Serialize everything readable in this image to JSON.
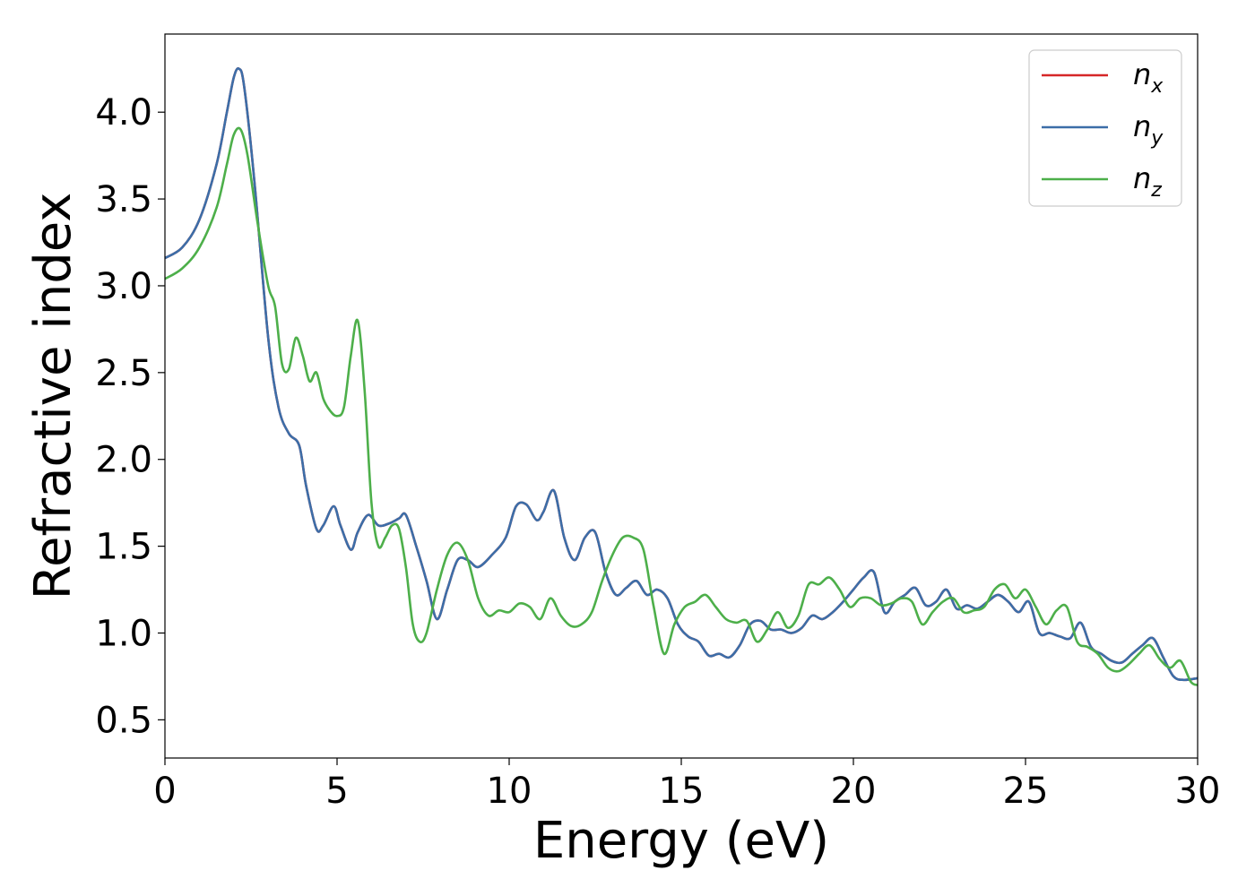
{
  "chart_data": {
    "type": "line",
    "title": "",
    "xlabel": "Energy (eV)",
    "ylabel": "Refractive index",
    "xlim": [
      0,
      30
    ],
    "ylim": [
      0.28,
      4.45
    ],
    "grid": false,
    "legend_position": "top-right",
    "x_ticks": [
      "0",
      "5",
      "10",
      "15",
      "20",
      "25",
      "30"
    ],
    "y_ticks": [
      "0.5",
      "1.0",
      "1.5",
      "2.0",
      "2.5",
      "3.0",
      "3.5",
      "4.0"
    ],
    "series": [
      {
        "name": "n_x",
        "legend_base": "n",
        "legend_sub": "x",
        "color": "#d62728",
        "x": [
          0,
          0.5,
          1.0,
          1.5,
          1.8,
          2.0,
          2.15,
          2.3,
          2.6,
          3.0,
          3.3,
          3.6,
          3.9,
          4.1,
          4.4,
          4.6,
          4.9,
          5.1,
          5.4,
          5.6,
          5.9,
          6.2,
          6.5,
          6.8,
          7.0,
          7.3,
          7.6,
          7.9,
          8.2,
          8.5,
          8.8,
          9.1,
          9.5,
          9.9,
          10.2,
          10.5,
          10.8,
          11.0,
          11.3,
          11.6,
          11.9,
          12.2,
          12.5,
          12.8,
          13.1,
          13.4,
          13.7,
          14.0,
          14.3,
          14.6,
          14.9,
          15.2,
          15.5,
          15.8,
          16.1,
          16.4,
          16.7,
          17.0,
          17.3,
          17.6,
          17.9,
          18.2,
          18.5,
          18.8,
          19.1,
          19.4,
          19.7,
          20.0,
          20.3,
          20.6,
          20.9,
          21.2,
          21.5,
          21.8,
          22.1,
          22.4,
          22.7,
          23.0,
          23.3,
          23.6,
          23.9,
          24.2,
          24.5,
          24.8,
          25.1,
          25.4,
          25.7,
          26.0,
          26.3,
          26.6,
          26.9,
          27.2,
          27.5,
          27.8,
          28.1,
          28.4,
          28.7,
          29.0,
          29.3,
          29.6,
          30.0
        ],
        "y": [
          3.16,
          3.22,
          3.38,
          3.7,
          4.0,
          4.2,
          4.25,
          4.15,
          3.6,
          2.7,
          2.3,
          2.15,
          2.08,
          1.85,
          1.6,
          1.62,
          1.73,
          1.62,
          1.48,
          1.58,
          1.68,
          1.62,
          1.63,
          1.66,
          1.68,
          1.5,
          1.3,
          1.08,
          1.25,
          1.42,
          1.42,
          1.38,
          1.45,
          1.55,
          1.73,
          1.74,
          1.65,
          1.7,
          1.82,
          1.55,
          1.42,
          1.55,
          1.58,
          1.35,
          1.22,
          1.26,
          1.3,
          1.22,
          1.25,
          1.2,
          1.05,
          0.98,
          0.95,
          0.87,
          0.88,
          0.86,
          0.93,
          1.05,
          1.07,
          1.02,
          1.02,
          1.0,
          1.03,
          1.1,
          1.08,
          1.12,
          1.18,
          1.25,
          1.32,
          1.35,
          1.12,
          1.18,
          1.22,
          1.26,
          1.16,
          1.18,
          1.25,
          1.14,
          1.16,
          1.14,
          1.18,
          1.22,
          1.18,
          1.12,
          1.18,
          1.0,
          1.0,
          0.98,
          0.97,
          1.06,
          0.92,
          0.88,
          0.84,
          0.83,
          0.88,
          0.93,
          0.97,
          0.86,
          0.75,
          0.73,
          0.74
        ]
      },
      {
        "name": "n_y",
        "legend_base": "n",
        "legend_sub": "y",
        "color": "#3c6ea8",
        "x": [
          0,
          0.5,
          1.0,
          1.5,
          1.8,
          2.0,
          2.15,
          2.3,
          2.6,
          3.0,
          3.3,
          3.6,
          3.9,
          4.1,
          4.4,
          4.6,
          4.9,
          5.1,
          5.4,
          5.6,
          5.9,
          6.2,
          6.5,
          6.8,
          7.0,
          7.3,
          7.6,
          7.9,
          8.2,
          8.5,
          8.8,
          9.1,
          9.5,
          9.9,
          10.2,
          10.5,
          10.8,
          11.0,
          11.3,
          11.6,
          11.9,
          12.2,
          12.5,
          12.8,
          13.1,
          13.4,
          13.7,
          14.0,
          14.3,
          14.6,
          14.9,
          15.2,
          15.5,
          15.8,
          16.1,
          16.4,
          16.7,
          17.0,
          17.3,
          17.6,
          17.9,
          18.2,
          18.5,
          18.8,
          19.1,
          19.4,
          19.7,
          20.0,
          20.3,
          20.6,
          20.9,
          21.2,
          21.5,
          21.8,
          22.1,
          22.4,
          22.7,
          23.0,
          23.3,
          23.6,
          23.9,
          24.2,
          24.5,
          24.8,
          25.1,
          25.4,
          25.7,
          26.0,
          26.3,
          26.6,
          26.9,
          27.2,
          27.5,
          27.8,
          28.1,
          28.4,
          28.7,
          29.0,
          29.3,
          29.6,
          30.0
        ],
        "y": [
          3.16,
          3.22,
          3.38,
          3.7,
          4.0,
          4.2,
          4.25,
          4.15,
          3.6,
          2.7,
          2.3,
          2.15,
          2.08,
          1.85,
          1.6,
          1.62,
          1.73,
          1.62,
          1.48,
          1.58,
          1.68,
          1.62,
          1.63,
          1.66,
          1.68,
          1.5,
          1.3,
          1.08,
          1.25,
          1.42,
          1.42,
          1.38,
          1.45,
          1.55,
          1.73,
          1.74,
          1.65,
          1.7,
          1.82,
          1.55,
          1.42,
          1.55,
          1.58,
          1.35,
          1.22,
          1.26,
          1.3,
          1.22,
          1.25,
          1.2,
          1.05,
          0.98,
          0.95,
          0.87,
          0.88,
          0.86,
          0.93,
          1.05,
          1.07,
          1.02,
          1.02,
          1.0,
          1.03,
          1.1,
          1.08,
          1.12,
          1.18,
          1.25,
          1.32,
          1.35,
          1.12,
          1.18,
          1.22,
          1.26,
          1.16,
          1.18,
          1.25,
          1.14,
          1.16,
          1.14,
          1.18,
          1.22,
          1.18,
          1.12,
          1.18,
          1.0,
          1.0,
          0.98,
          0.97,
          1.06,
          0.92,
          0.88,
          0.84,
          0.83,
          0.88,
          0.93,
          0.97,
          0.86,
          0.75,
          0.73,
          0.74
        ]
      },
      {
        "name": "n_z",
        "legend_base": "n",
        "legend_sub": "z",
        "color": "#4daf4a",
        "x": [
          0,
          0.5,
          1.0,
          1.5,
          1.8,
          2.0,
          2.2,
          2.4,
          2.7,
          3.0,
          3.2,
          3.4,
          3.6,
          3.8,
          4.0,
          4.2,
          4.4,
          4.6,
          4.8,
          5.0,
          5.2,
          5.4,
          5.6,
          5.8,
          6.0,
          6.2,
          6.4,
          6.6,
          6.8,
          7.0,
          7.2,
          7.4,
          7.6,
          7.9,
          8.2,
          8.5,
          8.8,
          9.1,
          9.4,
          9.7,
          10.0,
          10.3,
          10.6,
          10.9,
          11.2,
          11.5,
          11.8,
          12.1,
          12.4,
          12.7,
          13.0,
          13.3,
          13.6,
          13.9,
          14.2,
          14.5,
          14.8,
          15.1,
          15.4,
          15.7,
          16.0,
          16.3,
          16.6,
          16.9,
          17.2,
          17.5,
          17.8,
          18.1,
          18.4,
          18.7,
          19.0,
          19.3,
          19.6,
          19.9,
          20.2,
          20.5,
          20.8,
          21.1,
          21.4,
          21.7,
          22.0,
          22.3,
          22.6,
          22.9,
          23.2,
          23.5,
          23.8,
          24.1,
          24.4,
          24.7,
          25.0,
          25.3,
          25.6,
          25.9,
          26.2,
          26.5,
          26.8,
          27.1,
          27.4,
          27.7,
          28.0,
          28.3,
          28.6,
          28.9,
          29.2,
          29.5,
          29.8,
          30.0
        ],
        "y": [
          3.04,
          3.1,
          3.22,
          3.45,
          3.7,
          3.87,
          3.9,
          3.75,
          3.35,
          3.0,
          2.88,
          2.55,
          2.52,
          2.7,
          2.6,
          2.45,
          2.5,
          2.35,
          2.28,
          2.25,
          2.3,
          2.6,
          2.8,
          2.4,
          1.75,
          1.5,
          1.55,
          1.62,
          1.6,
          1.38,
          1.05,
          0.95,
          1.0,
          1.25,
          1.45,
          1.52,
          1.42,
          1.2,
          1.1,
          1.13,
          1.12,
          1.17,
          1.15,
          1.08,
          1.2,
          1.1,
          1.04,
          1.05,
          1.12,
          1.3,
          1.45,
          1.55,
          1.55,
          1.48,
          1.15,
          0.88,
          1.05,
          1.15,
          1.18,
          1.22,
          1.15,
          1.08,
          1.06,
          1.07,
          0.95,
          1.02,
          1.12,
          1.03,
          1.1,
          1.28,
          1.28,
          1.32,
          1.25,
          1.15,
          1.2,
          1.2,
          1.16,
          1.17,
          1.2,
          1.18,
          1.05,
          1.12,
          1.18,
          1.2,
          1.12,
          1.13,
          1.15,
          1.25,
          1.28,
          1.2,
          1.25,
          1.15,
          1.05,
          1.13,
          1.15,
          0.95,
          0.92,
          0.88,
          0.8,
          0.78,
          0.82,
          0.88,
          0.93,
          0.85,
          0.8,
          0.84,
          0.72,
          0.7
        ]
      }
    ]
  }
}
